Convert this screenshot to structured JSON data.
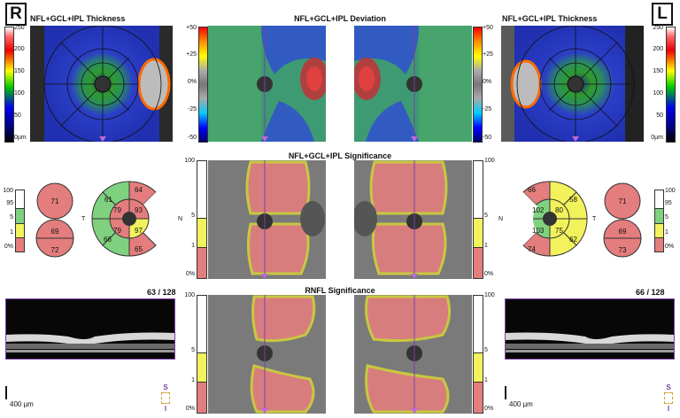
{
  "header": {
    "right_eye": "R",
    "left_eye": "L",
    "thickness_title": "NFL+GCL+IPL Thickness",
    "deviation_title": "NFL+GCL+IPL Deviation",
    "significance_title": "NFL+GCL+IPL Significance",
    "rnfl_title": "RNFL Significance"
  },
  "thickness_scale": [
    "250",
    "200",
    "150",
    "100",
    "50",
    "0µm"
  ],
  "deviation_scale": [
    "+50",
    "+25",
    "0%",
    "-25",
    "-50"
  ],
  "significance_scale": [
    "100",
    "95",
    "5",
    "1",
    "0%"
  ],
  "right_eye": {
    "temporal_label": "T",
    "nasal_label": "N",
    "hemisphere_values": [
      "71",
      "69",
      "72"
    ],
    "sector_values": [
      "61",
      "64",
      "79",
      "93",
      "66",
      "79",
      "97",
      "65"
    ],
    "bscan_counter": "63 / 128",
    "scale_bar": "400 µm"
  },
  "left_eye": {
    "temporal_label": "T",
    "nasal_label": "N",
    "hemisphere_values": [
      "71",
      "69",
      "73"
    ],
    "sector_values": [
      "66",
      "58",
      "102",
      "80",
      "103",
      "75",
      "74",
      "62"
    ],
    "bscan_counter": "66 / 128",
    "scale_bar": "400 µm"
  },
  "orientation": [
    "S",
    "I"
  ],
  "colors": {
    "normal": "#7fd17f",
    "borderline": "#f2f25c",
    "abnormal": "#e47d7d",
    "white": "#ffffff",
    "accent": "#7b3fa6"
  }
}
